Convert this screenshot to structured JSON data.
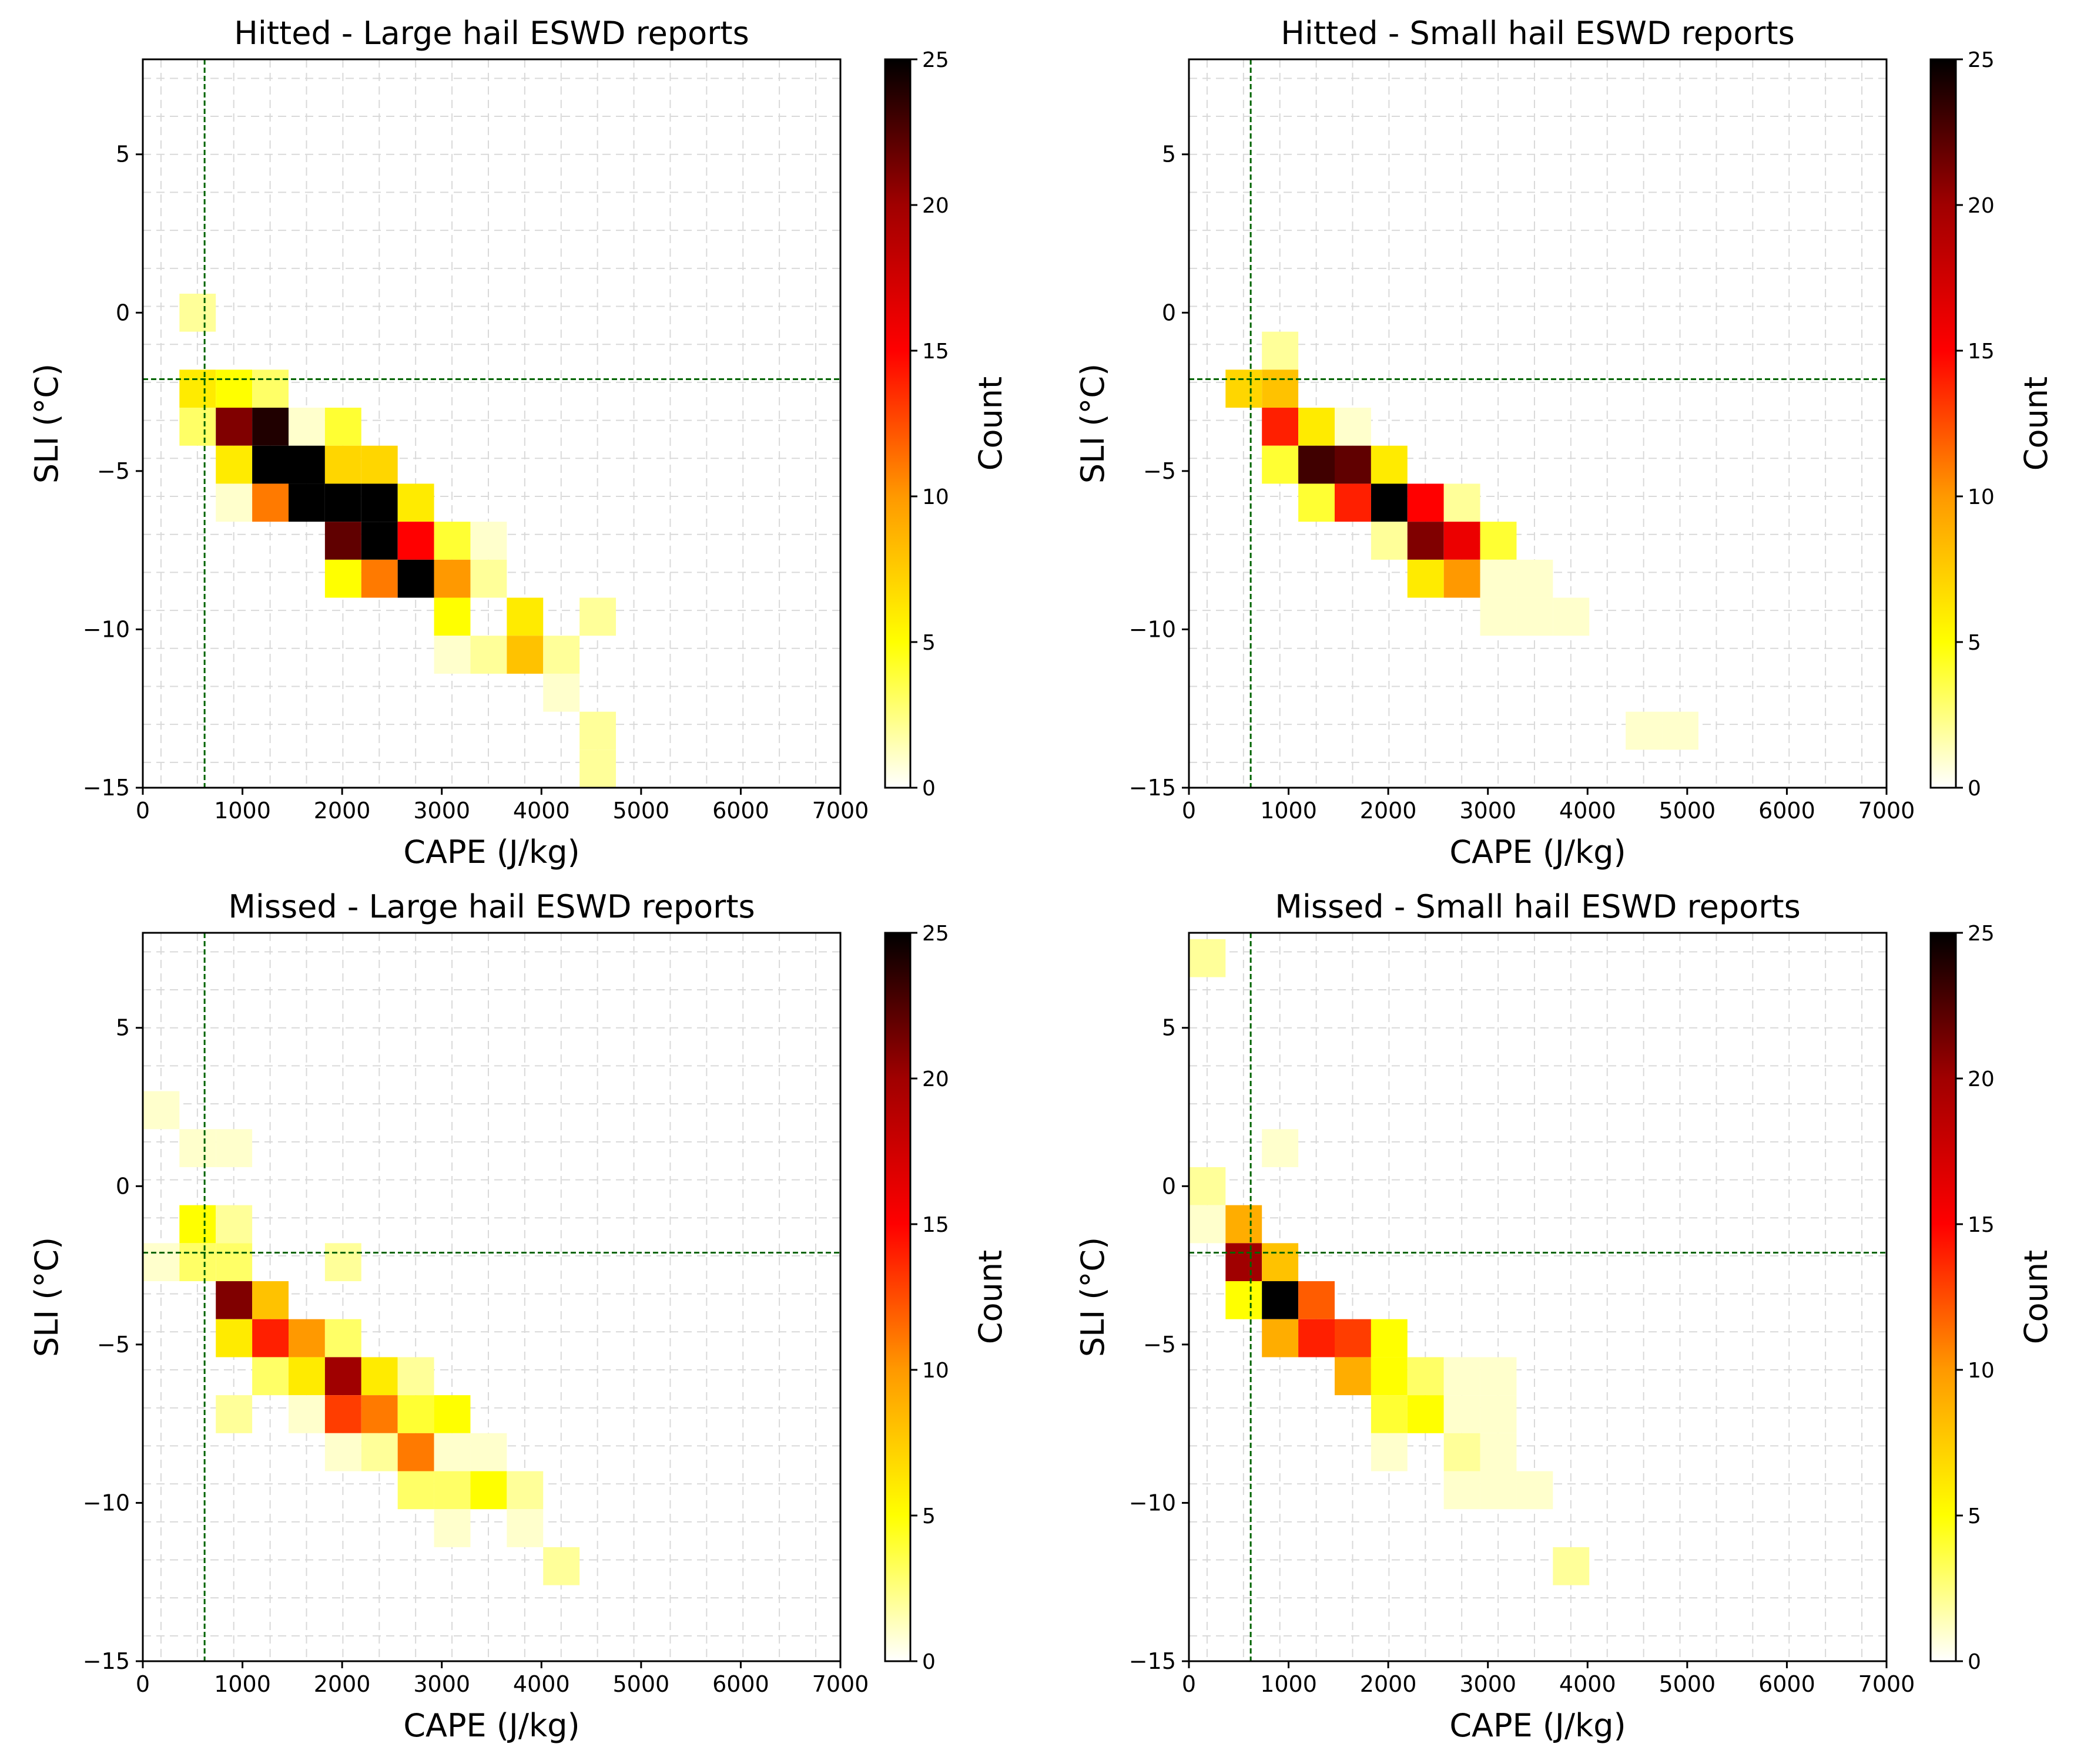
{
  "chart_data": [
    {
      "type": "heatmap",
      "title": "Hitted - Large hail ESWD reports",
      "xlabel": "CAPE (J/kg)",
      "ylabel": "SLI (°C)",
      "colorbar_label": "Count",
      "xlim": [
        0,
        7000
      ],
      "ylim": [
        -15,
        8
      ],
      "xticks": [
        "0",
        "1000",
        "2000",
        "3000",
        "4000",
        "5000",
        "6000",
        "7000"
      ],
      "yticks": [
        "−15",
        "−10",
        "−5",
        "0",
        "5"
      ],
      "colorbar_range": [
        0,
        25
      ],
      "colorbar_ticks": [
        "0",
        "5",
        "10",
        "15",
        "20",
        "25"
      ],
      "reference_lines": {
        "cape": 620,
        "sli": -2.1
      },
      "bin_width_cape": 365,
      "bin_height_sli": 1.2,
      "cells": [
        {
          "cape": 550,
          "sli": 0.0,
          "count": 2
        },
        {
          "cape": 550,
          "sli": -2.4,
          "count": 6
        },
        {
          "cape": 550,
          "sli": -3.6,
          "count": 3
        },
        {
          "cape": 915,
          "sli": -2.4,
          "count": 5
        },
        {
          "cape": 1280,
          "sli": -2.4,
          "count": 3
        },
        {
          "cape": 915,
          "sli": -3.6,
          "count": 21
        },
        {
          "cape": 1280,
          "sli": -3.6,
          "count": 24
        },
        {
          "cape": 1645,
          "sli": -3.6,
          "count": 1
        },
        {
          "cape": 2010,
          "sli": -3.6,
          "count": 4
        },
        {
          "cape": 915,
          "sli": -4.8,
          "count": 6
        },
        {
          "cape": 1280,
          "sli": -4.8,
          "count": 25
        },
        {
          "cape": 1645,
          "sli": -4.8,
          "count": 25
        },
        {
          "cape": 2010,
          "sli": -4.8,
          "count": 7
        },
        {
          "cape": 2375,
          "sli": -4.8,
          "count": 7
        },
        {
          "cape": 915,
          "sli": -6.0,
          "count": 1
        },
        {
          "cape": 1280,
          "sli": -6.0,
          "count": 11
        },
        {
          "cape": 1645,
          "sli": -6.0,
          "count": 25
        },
        {
          "cape": 2010,
          "sli": -6.0,
          "count": 25
        },
        {
          "cape": 2375,
          "sli": -6.0,
          "count": 25
        },
        {
          "cape": 2740,
          "sli": -6.0,
          "count": 6
        },
        {
          "cape": 2010,
          "sli": -7.2,
          "count": 22
        },
        {
          "cape": 2375,
          "sli": -7.2,
          "count": 25
        },
        {
          "cape": 2740,
          "sli": -7.2,
          "count": 15
        },
        {
          "cape": 3105,
          "sli": -7.2,
          "count": 4
        },
        {
          "cape": 3470,
          "sli": -7.2,
          "count": 1
        },
        {
          "cape": 2010,
          "sli": -8.4,
          "count": 5
        },
        {
          "cape": 2375,
          "sli": -8.4,
          "count": 11
        },
        {
          "cape": 2740,
          "sli": -8.4,
          "count": 25
        },
        {
          "cape": 3105,
          "sli": -8.4,
          "count": 10
        },
        {
          "cape": 3470,
          "sli": -8.4,
          "count": 2
        },
        {
          "cape": 3105,
          "sli": -9.6,
          "count": 5
        },
        {
          "cape": 3835,
          "sli": -9.6,
          "count": 6
        },
        {
          "cape": 4565,
          "sli": -9.6,
          "count": 2
        },
        {
          "cape": 3105,
          "sli": -10.8,
          "count": 1
        },
        {
          "cape": 3470,
          "sli": -10.8,
          "count": 2
        },
        {
          "cape": 3835,
          "sli": -10.8,
          "count": 8
        },
        {
          "cape": 4200,
          "sli": -10.8,
          "count": 2
        },
        {
          "cape": 4200,
          "sli": -12.0,
          "count": 1
        },
        {
          "cape": 4565,
          "sli": -13.2,
          "count": 2
        },
        {
          "cape": 4565,
          "sli": -14.4,
          "count": 2
        }
      ]
    },
    {
      "type": "heatmap",
      "title": "Hitted - Small hail ESWD reports",
      "xlabel": "CAPE (J/kg)",
      "ylabel": "SLI (°C)",
      "colorbar_label": "Count",
      "xlim": [
        0,
        7000
      ],
      "ylim": [
        -15,
        8
      ],
      "xticks": [
        "0",
        "1000",
        "2000",
        "3000",
        "4000",
        "5000",
        "6000",
        "7000"
      ],
      "yticks": [
        "−15",
        "−10",
        "−5",
        "0",
        "5"
      ],
      "colorbar_range": [
        0,
        25
      ],
      "colorbar_ticks": [
        "0",
        "5",
        "10",
        "15",
        "20",
        "25"
      ],
      "reference_lines": {
        "cape": 620,
        "sli": -2.1
      },
      "bin_width_cape": 365,
      "bin_height_sli": 1.2,
      "cells": [
        {
          "cape": 915,
          "sli": -1.2,
          "count": 2
        },
        {
          "cape": 550,
          "sli": -2.4,
          "count": 7
        },
        {
          "cape": 915,
          "sli": -2.4,
          "count": 8
        },
        {
          "cape": 915,
          "sli": -3.6,
          "count": 14
        },
        {
          "cape": 1280,
          "sli": -3.6,
          "count": 6
        },
        {
          "cape": 1645,
          "sli": -3.6,
          "count": 1
        },
        {
          "cape": 915,
          "sli": -4.8,
          "count": 4
        },
        {
          "cape": 1280,
          "sli": -4.8,
          "count": 23
        },
        {
          "cape": 1645,
          "sli": -4.8,
          "count": 22
        },
        {
          "cape": 2010,
          "sli": -4.8,
          "count": 6
        },
        {
          "cape": 1280,
          "sli": -6.0,
          "count": 4
        },
        {
          "cape": 1645,
          "sli": -6.0,
          "count": 14
        },
        {
          "cape": 2010,
          "sli": -6.0,
          "count": 25
        },
        {
          "cape": 2375,
          "sli": -6.0,
          "count": 15
        },
        {
          "cape": 2740,
          "sli": -6.0,
          "count": 2
        },
        {
          "cape": 2010,
          "sli": -7.2,
          "count": 2
        },
        {
          "cape": 2375,
          "sli": -7.2,
          "count": 21
        },
        {
          "cape": 2740,
          "sli": -7.2,
          "count": 16
        },
        {
          "cape": 3105,
          "sli": -7.2,
          "count": 4
        },
        {
          "cape": 2375,
          "sli": -8.4,
          "count": 6
        },
        {
          "cape": 2740,
          "sli": -8.4,
          "count": 10
        },
        {
          "cape": 3105,
          "sli": -8.4,
          "count": 1
        },
        {
          "cape": 3470,
          "sli": -8.4,
          "count": 1
        },
        {
          "cape": 3105,
          "sli": -9.6,
          "count": 1
        },
        {
          "cape": 3470,
          "sli": -9.6,
          "count": 1
        },
        {
          "cape": 3835,
          "sli": -9.6,
          "count": 1
        },
        {
          "cape": 4565,
          "sli": -13.2,
          "count": 1
        },
        {
          "cape": 4930,
          "sli": -13.2,
          "count": 1
        }
      ]
    },
    {
      "type": "heatmap",
      "title": "Missed - Large hail ESWD reports",
      "xlabel": "CAPE (J/kg)",
      "ylabel": "SLI (°C)",
      "colorbar_label": "Count",
      "xlim": [
        0,
        7000
      ],
      "ylim": [
        -15,
        8
      ],
      "xticks": [
        "0",
        "1000",
        "2000",
        "3000",
        "4000",
        "5000",
        "6000",
        "7000"
      ],
      "yticks": [
        "−15",
        "−10",
        "−5",
        "0",
        "5"
      ],
      "colorbar_range": [
        0,
        25
      ],
      "colorbar_ticks": [
        "0",
        "5",
        "10",
        "15",
        "20",
        "25"
      ],
      "reference_lines": {
        "cape": 620,
        "sli": -2.1
      },
      "bin_width_cape": 365,
      "bin_height_sli": 1.2,
      "cells": [
        {
          "cape": 185,
          "sli": 2.4,
          "count": 1
        },
        {
          "cape": 550,
          "sli": 1.2,
          "count": 1
        },
        {
          "cape": 915,
          "sli": 1.2,
          "count": 1
        },
        {
          "cape": 550,
          "sli": -1.2,
          "count": 5
        },
        {
          "cape": 915,
          "sli": -1.2,
          "count": 2
        },
        {
          "cape": 185,
          "sli": -2.4,
          "count": 1
        },
        {
          "cape": 550,
          "sli": -2.4,
          "count": 3
        },
        {
          "cape": 915,
          "sli": -2.4,
          "count": 3
        },
        {
          "cape": 2010,
          "sli": -2.4,
          "count": 2
        },
        {
          "cape": 915,
          "sli": -3.6,
          "count": 21
        },
        {
          "cape": 1280,
          "sli": -3.6,
          "count": 8
        },
        {
          "cape": 915,
          "sli": -4.8,
          "count": 6
        },
        {
          "cape": 1280,
          "sli": -4.8,
          "count": 14
        },
        {
          "cape": 1645,
          "sli": -4.8,
          "count": 10
        },
        {
          "cape": 2010,
          "sli": -4.8,
          "count": 3
        },
        {
          "cape": 1280,
          "sli": -6.0,
          "count": 3
        },
        {
          "cape": 1645,
          "sli": -6.0,
          "count": 6
        },
        {
          "cape": 2010,
          "sli": -6.0,
          "count": 20
        },
        {
          "cape": 2375,
          "sli": -6.0,
          "count": 6
        },
        {
          "cape": 2740,
          "sli": -6.0,
          "count": 2
        },
        {
          "cape": 915,
          "sli": -7.2,
          "count": 2
        },
        {
          "cape": 1645,
          "sli": -7.2,
          "count": 1
        },
        {
          "cape": 2010,
          "sli": -7.2,
          "count": 13
        },
        {
          "cape": 2375,
          "sli": -7.2,
          "count": 11
        },
        {
          "cape": 2740,
          "sli": -7.2,
          "count": 4
        },
        {
          "cape": 3105,
          "sli": -7.2,
          "count": 5
        },
        {
          "cape": 2010,
          "sli": -8.4,
          "count": 1
        },
        {
          "cape": 2375,
          "sli": -8.4,
          "count": 2
        },
        {
          "cape": 2740,
          "sli": -8.4,
          "count": 11
        },
        {
          "cape": 3105,
          "sli": -8.4,
          "count": 1
        },
        {
          "cape": 3470,
          "sli": -8.4,
          "count": 1
        },
        {
          "cape": 2740,
          "sli": -9.6,
          "count": 3
        },
        {
          "cape": 3105,
          "sli": -9.6,
          "count": 3
        },
        {
          "cape": 3470,
          "sli": -9.6,
          "count": 5
        },
        {
          "cape": 3835,
          "sli": -9.6,
          "count": 2
        },
        {
          "cape": 3105,
          "sli": -10.8,
          "count": 1
        },
        {
          "cape": 3835,
          "sli": -10.8,
          "count": 1
        },
        {
          "cape": 4200,
          "sli": -12.0,
          "count": 2
        }
      ]
    },
    {
      "type": "heatmap",
      "title": "Missed - Small hail ESWD reports",
      "xlabel": "CAPE (J/kg)",
      "ylabel": "SLI (°C)",
      "colorbar_label": "Count",
      "xlim": [
        0,
        7000
      ],
      "ylim": [
        -15,
        8
      ],
      "xticks": [
        "0",
        "1000",
        "2000",
        "3000",
        "4000",
        "5000",
        "6000",
        "7000"
      ],
      "yticks": [
        "−15",
        "−10",
        "−5",
        "0",
        "5"
      ],
      "colorbar_range": [
        0,
        25
      ],
      "colorbar_ticks": [
        "0",
        "5",
        "10",
        "15",
        "20",
        "25"
      ],
      "reference_lines": {
        "cape": 620,
        "sli": -2.1
      },
      "bin_width_cape": 365,
      "bin_height_sli": 1.2,
      "cells": [
        {
          "cape": 185,
          "sli": 7.2,
          "count": 2
        },
        {
          "cape": 915,
          "sli": 1.2,
          "count": 1
        },
        {
          "cape": 185,
          "sli": 0.0,
          "count": 2
        },
        {
          "cape": 185,
          "sli": -1.2,
          "count": 1
        },
        {
          "cape": 550,
          "sli": -1.2,
          "count": 9
        },
        {
          "cape": 550,
          "sli": -2.4,
          "count": 20
        },
        {
          "cape": 915,
          "sli": -2.4,
          "count": 8
        },
        {
          "cape": 550,
          "sli": -3.6,
          "count": 5
        },
        {
          "cape": 915,
          "sli": -3.6,
          "count": 25
        },
        {
          "cape": 1280,
          "sli": -3.6,
          "count": 12
        },
        {
          "cape": 915,
          "sli": -4.8,
          "count": 9
        },
        {
          "cape": 1280,
          "sli": -4.8,
          "count": 14
        },
        {
          "cape": 1645,
          "sli": -4.8,
          "count": 13
        },
        {
          "cape": 2010,
          "sli": -4.8,
          "count": 5
        },
        {
          "cape": 1645,
          "sli": -6.0,
          "count": 9
        },
        {
          "cape": 2010,
          "sli": -6.0,
          "count": 5
        },
        {
          "cape": 2375,
          "sli": -6.0,
          "count": 3
        },
        {
          "cape": 2740,
          "sli": -6.0,
          "count": 1
        },
        {
          "cape": 3105,
          "sli": -6.0,
          "count": 1
        },
        {
          "cape": 2010,
          "sli": -7.2,
          "count": 4
        },
        {
          "cape": 2375,
          "sli": -7.2,
          "count": 5
        },
        {
          "cape": 2740,
          "sli": -7.2,
          "count": 1
        },
        {
          "cape": 3105,
          "sli": -7.2,
          "count": 1
        },
        {
          "cape": 2010,
          "sli": -8.4,
          "count": 1
        },
        {
          "cape": 2740,
          "sli": -8.4,
          "count": 2
        },
        {
          "cape": 3105,
          "sli": -8.4,
          "count": 1
        },
        {
          "cape": 2740,
          "sli": -9.6,
          "count": 1
        },
        {
          "cape": 3105,
          "sli": -9.6,
          "count": 1
        },
        {
          "cape": 3470,
          "sli": -9.6,
          "count": 1
        },
        {
          "cape": 3835,
          "sli": -12.0,
          "count": 2
        }
      ]
    }
  ],
  "colors": {
    "reference_line": "#006400",
    "grid": "#d9d9d9",
    "colormap_stops": [
      "#ffffff",
      "#ffff00",
      "#ff9900",
      "#ff0000",
      "#a00000",
      "#000000"
    ]
  }
}
